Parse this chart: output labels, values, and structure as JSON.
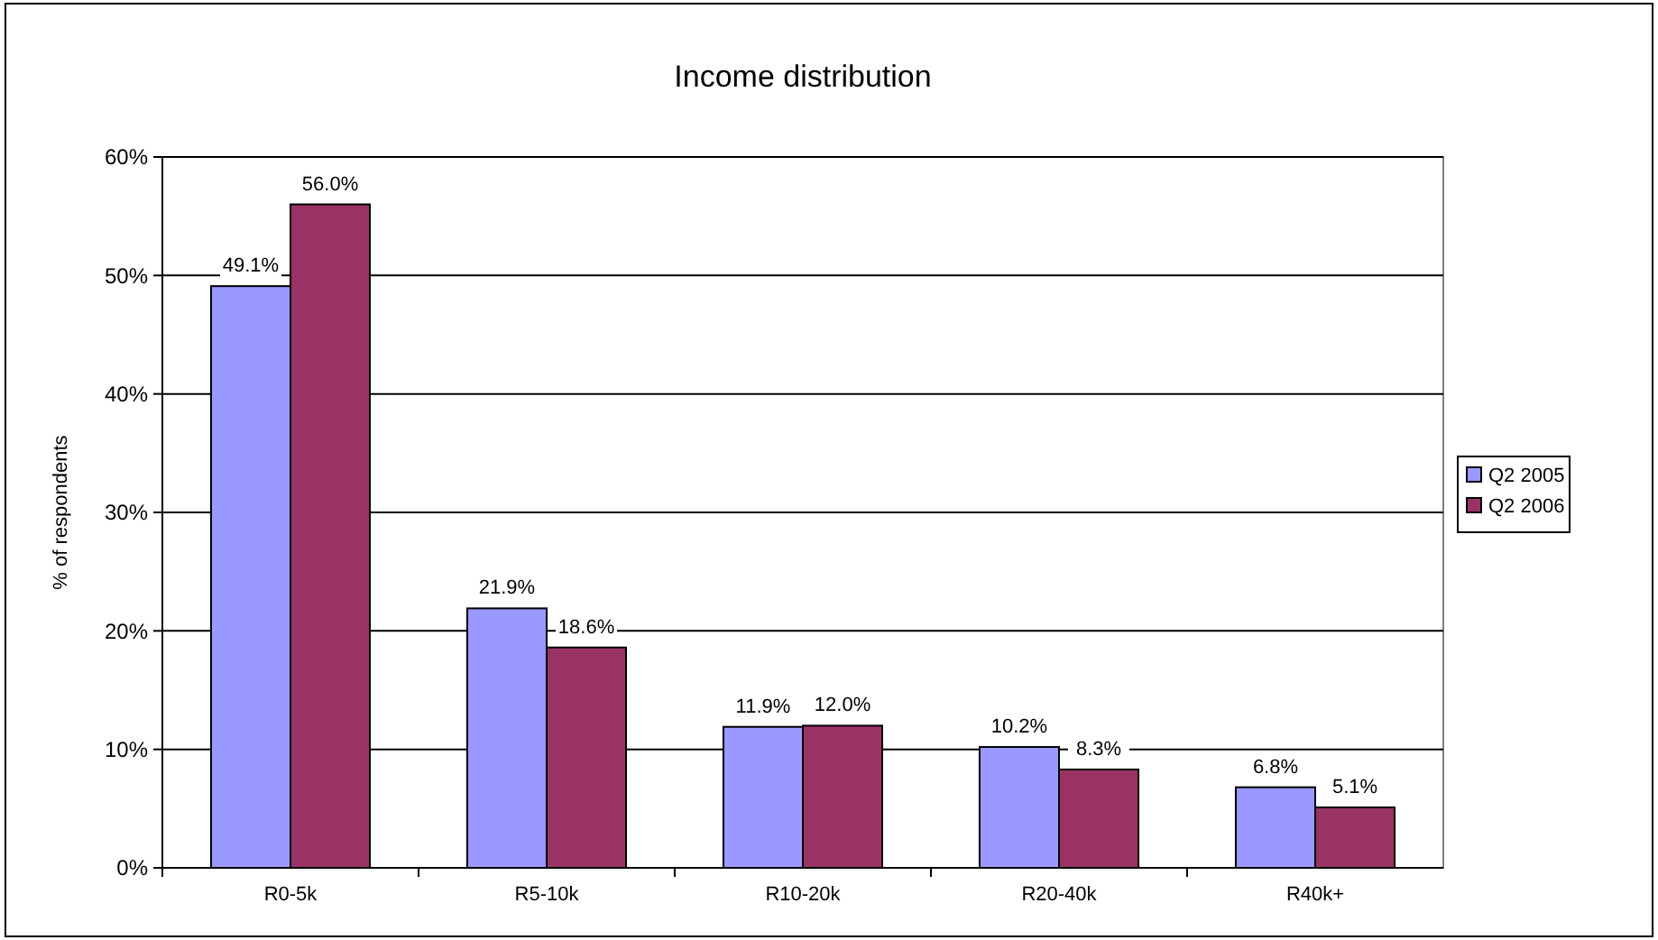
{
  "chart_data": {
    "type": "bar",
    "title": "Income distribution",
    "ylabel": "% of respondents",
    "categories": [
      "R0-5k",
      "R5-10k",
      "R10-20k",
      "R20-40k",
      "R40k+"
    ],
    "series": [
      {
        "name": "Q2 2005",
        "color": "#9999ff",
        "values": [
          49.1,
          21.9,
          11.9,
          10.2,
          6.8
        ],
        "value_labels": [
          "49.1%",
          "21.9%",
          "11.9%",
          "10.2%",
          "6.8%"
        ]
      },
      {
        "name": "Q2 2006",
        "color": "#993366",
        "values": [
          56.0,
          18.6,
          12.0,
          8.3,
          5.1
        ],
        "value_labels": [
          "56.0%",
          "18.6%",
          "12.0%",
          "8.3%",
          "5.1%"
        ]
      }
    ],
    "ylim": [
      0,
      60
    ],
    "yticks": [
      {
        "value": 0,
        "label": "0%"
      },
      {
        "value": 10,
        "label": "10%"
      },
      {
        "value": 20,
        "label": "20%"
      },
      {
        "value": 30,
        "label": "30%"
      },
      {
        "value": 40,
        "label": "40%"
      },
      {
        "value": 50,
        "label": "50%"
      },
      {
        "value": 60,
        "label": "60%"
      }
    ],
    "grid": "y",
    "legend": "right"
  }
}
